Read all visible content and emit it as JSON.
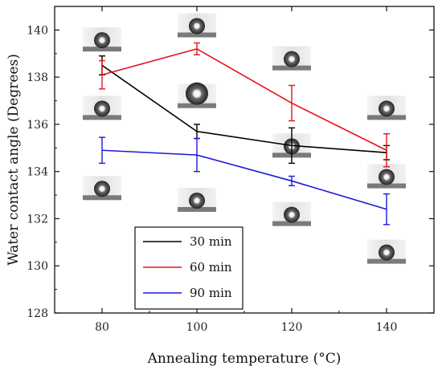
{
  "chart_data": {
    "type": "line",
    "title": "",
    "xlabel": "Annealing temperature (°C)",
    "ylabel": "Water contact angle (Degrees)",
    "x": [
      80,
      100,
      120,
      140
    ],
    "xlim": [
      70,
      150
    ],
    "ylim": [
      128,
      141
    ],
    "xticks": [
      "80",
      "100",
      "120",
      "140"
    ],
    "yticks": [
      "128",
      "130",
      "132",
      "134",
      "136",
      "138",
      "140"
    ],
    "grid": false,
    "error_bars": true,
    "legend_position": "bottom-left",
    "series": [
      {
        "name": "30 min",
        "color": "#000000",
        "values": [
          138.5,
          135.7,
          135.1,
          134.8
        ],
        "errors": [
          0.4,
          0.3,
          0.75,
          0.3
        ]
      },
      {
        "name": "60 min",
        "color": "#e8141b",
        "values": [
          138.1,
          139.2,
          136.9,
          134.9
        ],
        "errors": [
          0.6,
          0.25,
          0.75,
          0.7
        ]
      },
      {
        "name": "90 min",
        "color": "#1a1ad6",
        "values": [
          134.9,
          134.7,
          133.6,
          132.4
        ],
        "errors": [
          0.55,
          0.7,
          0.2,
          0.65
        ]
      }
    ],
    "droplet_images": [
      {
        "x": 80,
        "y": 139.6
      },
      {
        "x": 80,
        "y": 136.7
      },
      {
        "x": 80,
        "y": 133.3
      },
      {
        "x": 100,
        "y": 140.2
      },
      {
        "x": 100,
        "y": 137.2
      },
      {
        "x": 100,
        "y": 132.8
      },
      {
        "x": 120,
        "y": 138.8
      },
      {
        "x": 120,
        "y": 135.1
      },
      {
        "x": 120,
        "y": 132.2
      },
      {
        "x": 140,
        "y": 136.7
      },
      {
        "x": 140,
        "y": 133.8
      },
      {
        "x": 140,
        "y": 130.6
      }
    ]
  }
}
